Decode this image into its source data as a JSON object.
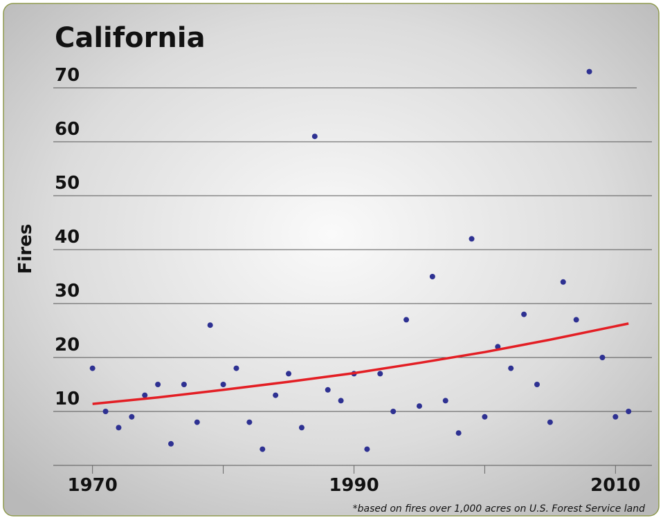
{
  "chart_data": {
    "type": "scatter",
    "title": "California",
    "ylabel": "Fires",
    "footnote": "*based on fires over 1,000 acres on U.S. Forest Service land",
    "series": [
      {
        "name": "Fires",
        "color": "#2e3192",
        "x": [
          1970,
          1971,
          1972,
          1973,
          1974,
          1975,
          1976,
          1977,
          1978,
          1979,
          1980,
          1981,
          1982,
          1983,
          1984,
          1985,
          1986,
          1987,
          1988,
          1989,
          1990,
          1991,
          1992,
          1993,
          1994,
          1995,
          1996,
          1997,
          1998,
          1999,
          2000,
          2001,
          2002,
          2003,
          2004,
          2005,
          2006,
          2007,
          2008,
          2009,
          2010,
          2011
        ],
        "values": [
          18,
          10,
          7,
          9,
          13,
          15,
          4,
          15,
          8,
          26,
          15,
          18,
          8,
          3,
          13,
          17,
          7,
          61,
          14,
          12,
          17,
          3,
          17,
          10,
          27,
          11,
          35,
          12,
          6,
          42,
          9,
          22,
          18,
          28,
          15,
          8,
          34,
          27,
          73,
          20,
          9,
          10
        ]
      },
      {
        "name": "Trend",
        "color": "#e31e24",
        "line": true,
        "x": [
          1970,
          1975,
          1980,
          1985,
          1990,
          1995,
          2000,
          2005,
          2011
        ],
        "values": [
          11.4,
          12.6,
          14.0,
          15.5,
          17.1,
          19.0,
          21.0,
          23.3,
          26.3
        ]
      }
    ],
    "xlim": [
      1967,
      2013
    ],
    "xticks": [
      1970,
      1990,
      2010
    ],
    "minor_xticks": [
      1980,
      2000
    ],
    "ylim": [
      0,
      75
    ],
    "yticks": [
      10,
      20,
      30,
      40,
      50,
      60,
      70
    ],
    "grid": true
  }
}
